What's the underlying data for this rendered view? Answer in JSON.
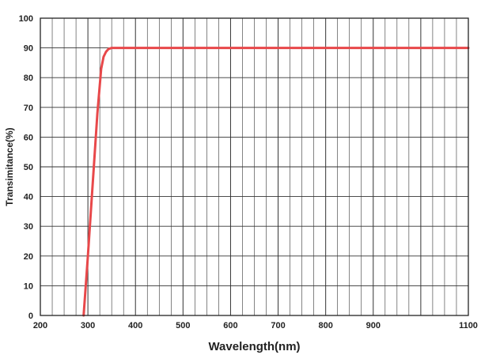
{
  "chart_data": {
    "type": "line",
    "title": "",
    "xlabel": "Wavelength(nm)",
    "ylabel": "Transimitance(%)",
    "xlim": [
      200,
      1100
    ],
    "ylim": [
      0,
      100
    ],
    "x_major_ticks": [
      200,
      300,
      400,
      500,
      600,
      700,
      800,
      900,
      1100
    ],
    "y_major_ticks": [
      0,
      10,
      20,
      30,
      40,
      50,
      60,
      70,
      80,
      90,
      100
    ],
    "x_minor_step": 25,
    "grid": true,
    "legend": "none",
    "line_color": "#e8484a",
    "grid_color": "#333333",
    "series": [
      {
        "x": [
          291,
          300,
          310,
          320,
          328,
          333,
          338,
          343,
          350,
          360,
          400,
          500,
          600,
          700,
          800,
          900,
          1000,
          1100
        ],
        "y": [
          0,
          20,
          44,
          68,
          83,
          87,
          88.7,
          89.6,
          90,
          90,
          90,
          90,
          90,
          90,
          90,
          90,
          90,
          90
        ]
      }
    ]
  }
}
